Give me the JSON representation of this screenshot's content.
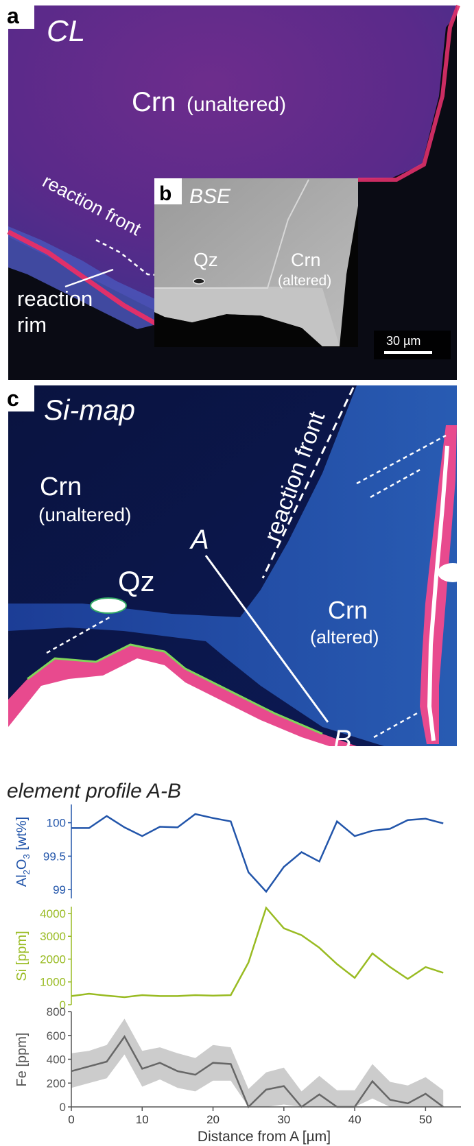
{
  "panel_a": {
    "letter": "a",
    "mode": "CL",
    "crn_label": "Crn",
    "crn_qualifier": "(unaltered)",
    "reaction_front": "reaction front",
    "reaction_rim_1": "reaction",
    "reaction_rim_2": "rim",
    "scale_bar": "30 µm"
  },
  "panel_b": {
    "letter": "b",
    "mode": "BSE",
    "qz_label": "Qz",
    "crn_label": "Crn",
    "crn_qualifier": "(altered)"
  },
  "panel_c": {
    "letter": "c",
    "mode": "Si-map",
    "crn_unaltered": "Crn",
    "crn_unaltered_q": "(unaltered)",
    "qz_label": "Qz",
    "reaction_front": "reaction front",
    "crn_altered": "Crn",
    "crn_altered_q": "(altered)",
    "point_a": "A",
    "point_b": "B"
  },
  "profile_title": "element profile A-B",
  "colors": {
    "al2o3": "#2255aa",
    "si": "#99bb22",
    "fe": "#555555",
    "fe_band": "#cccccc"
  },
  "chart_data": [
    {
      "type": "line",
      "ylabel": "Al2O3 [wt%]",
      "ylabel_parts": [
        "Al",
        "2",
        "O",
        "3",
        " [wt%]"
      ],
      "ylim": [
        98.95,
        100.15
      ],
      "yticks": [
        "100",
        "99.5",
        "99"
      ],
      "ytick_values": [
        100,
        99.5,
        99
      ],
      "x": [
        0,
        2.5,
        5,
        7.5,
        10,
        12.5,
        15,
        17.5,
        20,
        22.5,
        25,
        27.5,
        30,
        32.5,
        35,
        37.5,
        40,
        42.5,
        45,
        47.5,
        50,
        52.5
      ],
      "values": [
        99.92,
        99.92,
        100.1,
        99.93,
        99.8,
        99.94,
        99.93,
        100.13,
        100.07,
        100.02,
        99.26,
        98.97,
        99.34,
        99.56,
        99.42,
        100.02,
        99.8,
        99.88,
        99.91,
        100.04,
        100.06,
        99.99
      ]
    },
    {
      "type": "line",
      "ylabel": "Si [ppm]",
      "ylim": [
        0,
        4300
      ],
      "yticks": [
        "4000",
        "3000",
        "2000",
        "1000",
        "0"
      ],
      "ytick_values": [
        4000,
        3000,
        2000,
        1000,
        0
      ],
      "x": [
        0,
        2.5,
        5,
        7.5,
        10,
        12.5,
        15,
        17.5,
        20,
        22.5,
        25,
        27.5,
        30,
        32.5,
        35,
        37.5,
        40,
        42.5,
        45,
        47.5,
        50,
        52.5
      ],
      "values": [
        380,
        480,
        400,
        330,
        420,
        380,
        380,
        420,
        400,
        420,
        1850,
        4250,
        3350,
        3050,
        2500,
        1780,
        1180,
        2250,
        1650,
        1130,
        1650,
        1400
      ]
    },
    {
      "type": "line",
      "ylabel": "Fe [ppm]",
      "xlabel": "Distance from A [µm]",
      "ylim": [
        0,
        800
      ],
      "yticks": [
        "800",
        "600",
        "400",
        "200",
        "0"
      ],
      "ytick_values": [
        800,
        600,
        400,
        200,
        0
      ],
      "xlim": [
        0,
        55
      ],
      "xticks": [
        "0",
        "10",
        "20",
        "30",
        "40",
        "50"
      ],
      "xtick_values": [
        0,
        10,
        20,
        30,
        40,
        50
      ],
      "x": [
        0,
        2.5,
        5,
        7.5,
        10,
        12.5,
        15,
        17.5,
        20,
        22.5,
        25,
        27.5,
        30,
        32.5,
        35,
        37.5,
        40,
        42.5,
        45,
        47.5,
        50,
        52.5
      ],
      "values": [
        300,
        340,
        380,
        590,
        320,
        370,
        300,
        270,
        370,
        360,
        0,
        145,
        175,
        0,
        105,
        0,
        0,
        215,
        60,
        30,
        110,
        0
      ],
      "upper": [
        450,
        470,
        520,
        740,
        470,
        500,
        450,
        410,
        520,
        500,
        150,
        290,
        330,
        130,
        260,
        140,
        140,
        360,
        210,
        180,
        250,
        140
      ],
      "lower": [
        160,
        200,
        240,
        440,
        170,
        230,
        160,
        130,
        220,
        220,
        0,
        0,
        20,
        0,
        0,
        0,
        0,
        70,
        0,
        0,
        0,
        0
      ]
    }
  ]
}
